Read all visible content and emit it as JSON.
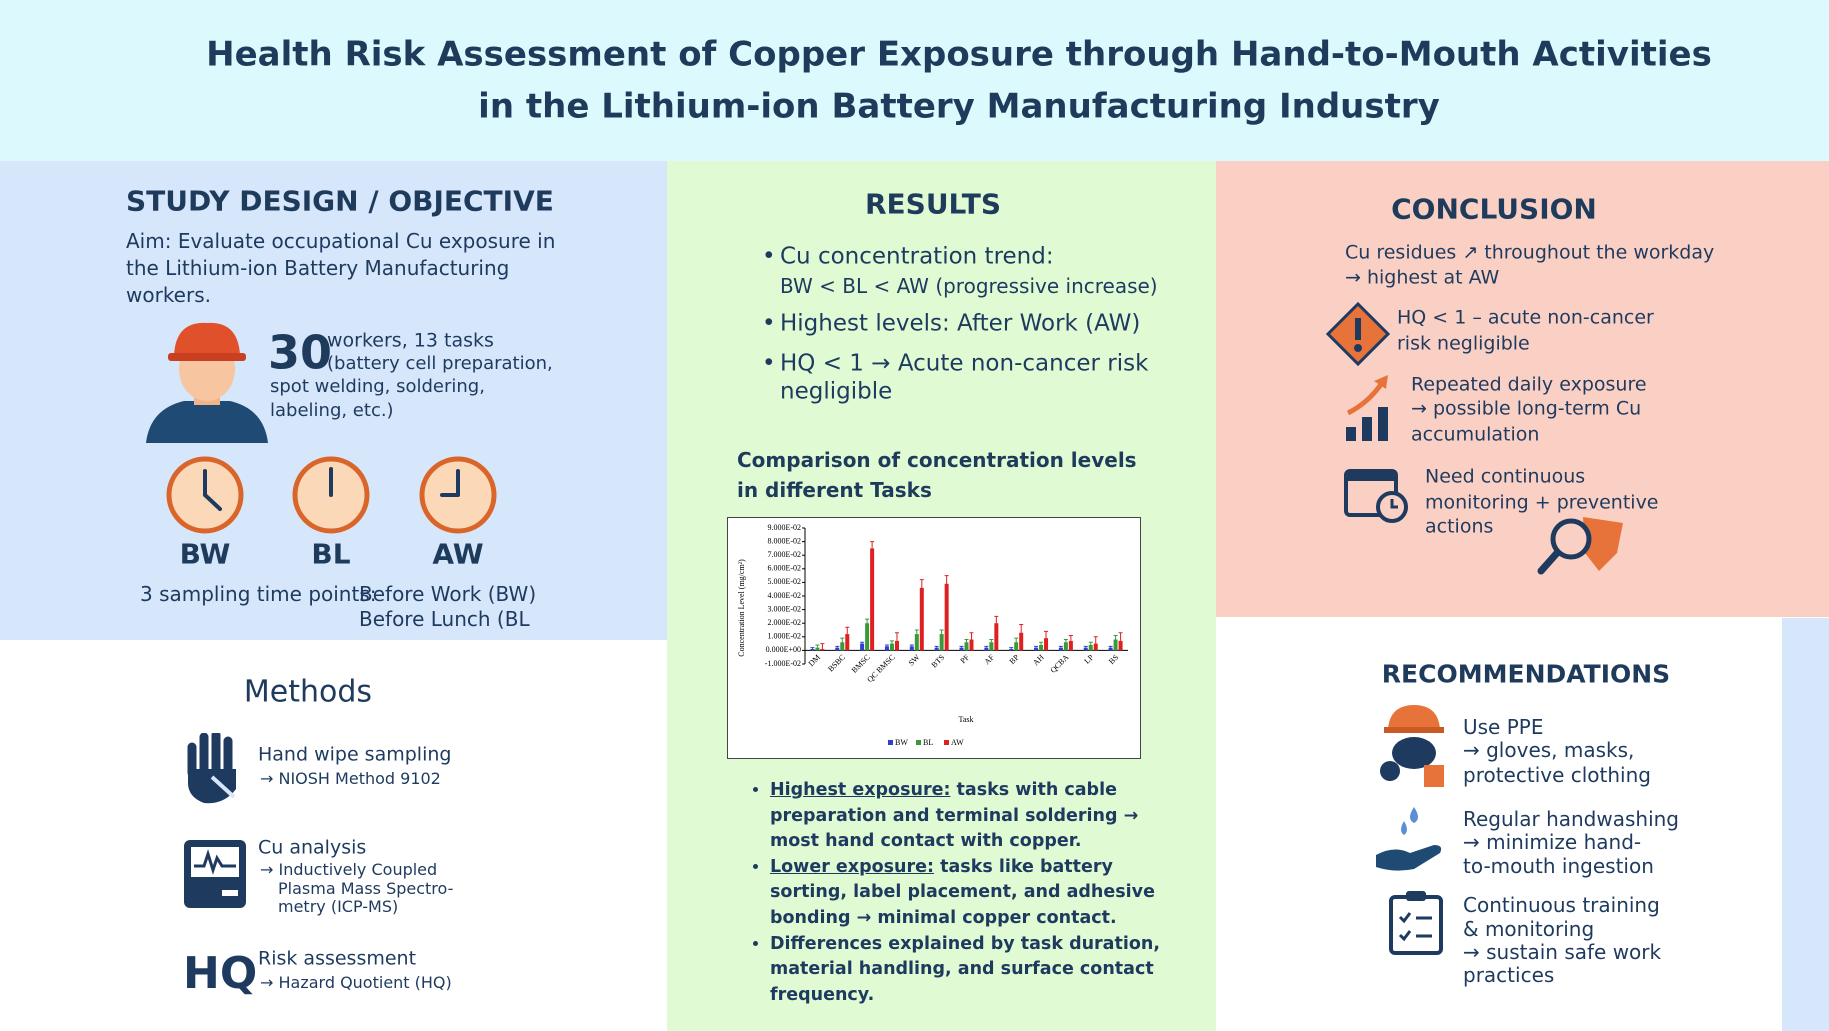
{
  "header": {
    "title_line1": "Health Risk Assessment of Copper Exposure through Hand-to-Mouth Activities",
    "title_line2": "in the Lithium-ion Battery Manufacturing Industry"
  },
  "study_design": {
    "heading": "STUDY DESIGN / OBJECTIVE",
    "aim": "Aim: Evaluate occupational Cu exposure in the Lithium-ion Battery Manufacturing workers.",
    "workers_count": "30",
    "workers_text": "workers, 13 tasks",
    "tasks_lines": [
      "(battery cell preparation,",
      "spot welding, soldering,",
      "labeling, etc.)"
    ],
    "time_points": [
      "BW",
      "BL",
      "AW"
    ],
    "sampling_label": "3 sampling time points:",
    "sampling_lines": [
      "Before Work (BW)",
      "Before Lunch (BL"
    ]
  },
  "methods": {
    "heading": "Methods",
    "items": [
      {
        "title": "Hand wipe sampling",
        "detail_lines": [
          "→ NIOSH Method 9102"
        ]
      },
      {
        "title": "Cu analysis",
        "detail_lines": [
          "→ Inductively Coupled",
          "Plasma Mass Spectro-",
          "metry (ICP-MS)"
        ]
      },
      {
        "icon_text": "HQ",
        "title": "Risk assessment",
        "detail_lines": [
          "→ Hazard Quotient (HQ)"
        ]
      }
    ]
  },
  "results": {
    "heading": "RESULTS",
    "bullets": [
      [
        "Cu concentration trend:",
        "BW < BL < AW (progressive increase)"
      ],
      [
        "Highest levels: After Work (AW)"
      ],
      [
        "HQ < 1 → Acute non-cancer risk",
        "negligible"
      ]
    ],
    "chart_title": [
      "Comparison of concentration levels",
      "in different Tasks"
    ],
    "chart": {
      "type": "bar",
      "x_label": "Task",
      "y_label": "Concentration Level (mg/cm²)",
      "categories": [
        "DM",
        "BSBC",
        "BMSC",
        "QC BMSC",
        "SW",
        "BTS",
        "PF",
        "AF",
        "BP",
        "AH",
        "QCBA",
        "LP",
        "BS"
      ],
      "series": [
        {
          "name": "BW",
          "color": "#2f3fd0",
          "values": [
            0.001,
            0.002,
            0.005,
            0.003,
            0.003,
            0.002,
            0.002,
            0.002,
            0.001,
            0.002,
            0.002,
            0.002,
            0.002
          ],
          "errors": [
            0.001,
            0.001,
            0.001,
            0.001,
            0.001,
            0.001,
            0.001,
            0.001,
            0.001,
            0.001,
            0.001,
            0.001,
            0.001
          ]
        },
        {
          "name": "BL",
          "color": "#3a9a3a",
          "values": [
            0.002,
            0.006,
            0.02,
            0.005,
            0.012,
            0.012,
            0.006,
            0.006,
            0.006,
            0.004,
            0.006,
            0.004,
            0.008
          ],
          "errors": [
            0.002,
            0.003,
            0.003,
            0.002,
            0.003,
            0.003,
            0.002,
            0.002,
            0.003,
            0.002,
            0.002,
            0.002,
            0.003
          ]
        },
        {
          "name": "AW",
          "color": "#e02020",
          "values": [
            0.001,
            0.012,
            0.075,
            0.007,
            0.046,
            0.049,
            0.008,
            0.02,
            0.013,
            0.009,
            0.007,
            0.005,
            0.007
          ],
          "errors": [
            0.004,
            0.005,
            0.005,
            0.006,
            0.006,
            0.006,
            0.005,
            0.005,
            0.006,
            0.005,
            0.004,
            0.005,
            0.006
          ]
        }
      ],
      "ylim": [
        -0.01,
        0.09
      ],
      "yticks": [
        {
          "value": -0.01,
          "label": "-1.000E-02"
        },
        {
          "value": 0,
          "label": "0.000E+00"
        },
        {
          "value": 0.01,
          "label": "1.000E-02"
        },
        {
          "value": 0.02,
          "label": "2.000E-02"
        },
        {
          "value": 0.03,
          "label": "3.000E-02"
        },
        {
          "value": 0.04,
          "label": "4.000E-02"
        },
        {
          "value": 0.05,
          "label": "5.000E-02"
        },
        {
          "value": 0.06,
          "label": "6.000E-02"
        },
        {
          "value": 0.07,
          "label": "7.000E-02"
        },
        {
          "value": 0.08,
          "label": "8.000E-02"
        },
        {
          "value": 0.09,
          "label": "9.000E-02"
        }
      ]
    },
    "findings": [
      {
        "label": "Highest exposure:",
        "text": " tasks with cable preparation and terminal soldering → most hand contact with copper."
      },
      {
        "label": "Lower exposure:",
        "text": " tasks like battery sorting, label placement, and adhesive bonding → minimal copper contact."
      },
      {
        "text": "Differences explained by task duration, material handling, and surface contact frequency."
      }
    ]
  },
  "conclusion": {
    "heading": "CONCLUSION",
    "items": [
      [
        "Cu residues ↗ throughout the workday",
        "→ highest at AW"
      ],
      [
        "HQ < 1 – acute non-cancer",
        "risk negligible"
      ],
      [
        "Repeated daily exposure",
        "→ possible long-term Cu",
        "accumulation"
      ],
      [
        "Need continuous",
        "monitoring + preventive",
        "actions"
      ]
    ]
  },
  "recommendations": {
    "heading": "RECOMMENDATIONS",
    "items": [
      [
        "Use PPE",
        "→ gloves, masks,",
        "protective clothing"
      ],
      [
        "Regular handwashing",
        "→ minimize hand-",
        "to-mouth ingestion"
      ],
      [
        "Continuous training",
        "& monitoring",
        "→ sustain safe work",
        "practices"
      ]
    ]
  }
}
